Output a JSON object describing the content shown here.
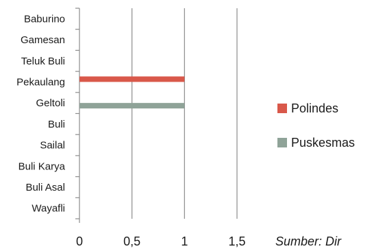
{
  "chart_data": {
    "type": "bar",
    "orientation": "horizontal",
    "categories": [
      "Baburino",
      "Gamesan",
      "Teluk Buli",
      "Pekaulang",
      "Geltoli",
      "Buli",
      "Sailal",
      "Buli Karya",
      "Buli Asal",
      "Wayafli"
    ],
    "series": [
      {
        "name": "Polindes",
        "color": "#d9584a",
        "values": [
          0,
          0,
          0,
          1,
          0,
          0,
          0,
          0,
          0,
          0
        ]
      },
      {
        "name": "Puskesmas",
        "color": "#8fa398",
        "values": [
          0,
          0,
          0,
          0,
          1,
          0,
          0,
          0,
          0,
          0
        ]
      }
    ],
    "xlim": [
      0,
      1.5
    ],
    "xticks": [
      "0",
      "0,5",
      "1",
      "1,5"
    ],
    "xtick_values": [
      0,
      0.5,
      1,
      1.5
    ],
    "grid": "vertical",
    "legend": "right"
  },
  "source_note": "Sumber: Dir"
}
